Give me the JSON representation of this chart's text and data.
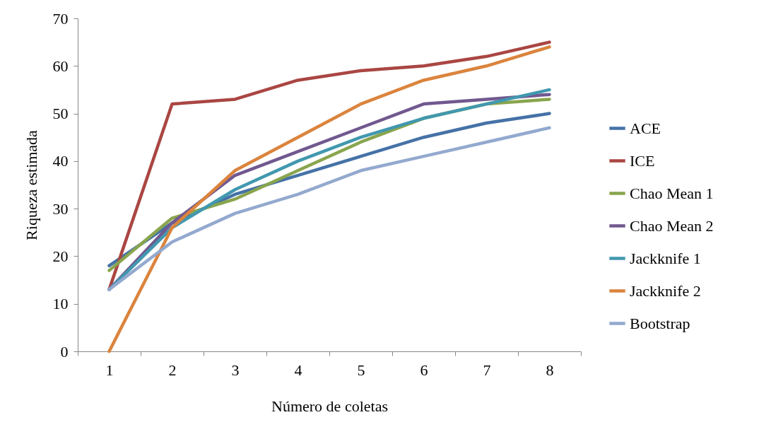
{
  "chart_data": {
    "type": "line",
    "xlabel": "Número de coletas",
    "ylabel": "Riqueza estimada",
    "categories": [
      "1",
      "2",
      "3",
      "4",
      "5",
      "6",
      "7",
      "8"
    ],
    "series": [
      {
        "name": "ACE",
        "color": "#4572a7",
        "values": [
          18,
          27,
          33,
          37,
          41,
          45,
          48,
          50
        ]
      },
      {
        "name": "ICE",
        "color": "#aa4643",
        "values": [
          13,
          52,
          53,
          57,
          59,
          60,
          62,
          65
        ]
      },
      {
        "name": "Chao Mean 1",
        "color": "#89a54e",
        "values": [
          17,
          28,
          32,
          38,
          44,
          49,
          52,
          53
        ]
      },
      {
        "name": "Chao Mean 2",
        "color": "#71588f",
        "values": [
          13,
          27,
          37,
          42,
          47,
          52,
          53,
          54
        ]
      },
      {
        "name": "Jackknife 1",
        "color": "#4198af",
        "values": [
          13,
          26,
          34,
          40,
          45,
          49,
          52,
          55
        ]
      },
      {
        "name": "Jackknife 2",
        "color": "#db843d",
        "values": [
          0,
          26,
          38,
          45,
          52,
          57,
          60,
          64
        ]
      },
      {
        "name": "Bootstrap",
        "color": "#93a9cf",
        "values": [
          13,
          23,
          29,
          33,
          38,
          41,
          44,
          47
        ]
      }
    ],
    "ylim": [
      0,
      70
    ],
    "yticks": [
      0,
      10,
      20,
      30,
      40,
      50,
      60,
      70
    ],
    "grid": false,
    "legend": "right",
    "marker": "none",
    "line_style": "solid"
  }
}
